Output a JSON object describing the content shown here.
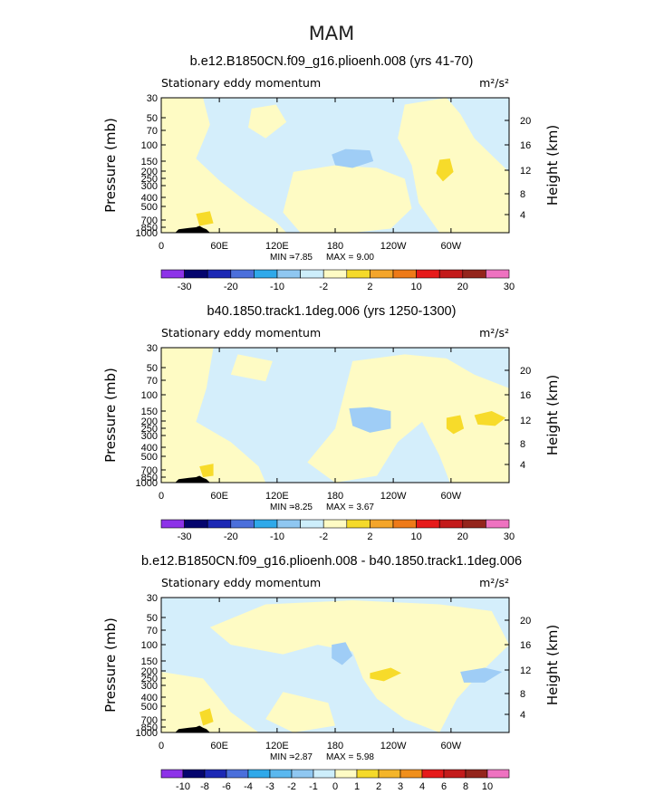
{
  "figure_title": "MAM",
  "colors": {
    "light_blue": "#d4eefb",
    "light_yellow": "#fefbc4",
    "mid_blue": "#9fcdf6",
    "yellow": "#f7db2a",
    "frame": "#000000"
  },
  "chart_data": [
    {
      "type": "heatmap",
      "title": "b.e12.B1850CN.f09_g16.plioenh.008 (yrs 41-70)",
      "left_label": "Stationary eddy momentum",
      "units": "m²/s²",
      "ylabel": "Pressure (mb)",
      "ylabel_right": "Height (km)",
      "x_ticks": [
        "0",
        "60E",
        "120E",
        "180",
        "120W",
        "60W"
      ],
      "y_ticks": [
        "30",
        "50",
        "70",
        "100",
        "150",
        "200",
        "250",
        "300",
        "400",
        "500",
        "700",
        "850",
        "1000"
      ],
      "height_ticks": [
        "20",
        "16",
        "12",
        "8",
        "4"
      ],
      "stats": {
        "min_label": "MIN =",
        "min": "-7.85",
        "max_label": "MAX =",
        "max": "9.00"
      },
      "colorbar_labels": [
        "-30",
        "-20",
        "-10",
        "-2",
        "2",
        "10",
        "20",
        "30"
      ]
    },
    {
      "type": "heatmap",
      "title": "b40.1850.track1.1deg.006 (yrs 1250-1300)",
      "left_label": "Stationary eddy momentum",
      "units": "m²/s²",
      "ylabel": "Pressure (mb)",
      "ylabel_right": "Height (km)",
      "x_ticks": [
        "0",
        "60E",
        "120E",
        "180",
        "120W",
        "60W"
      ],
      "y_ticks": [
        "30",
        "50",
        "70",
        "100",
        "150",
        "200",
        "250",
        "300",
        "400",
        "500",
        "700",
        "850",
        "1000"
      ],
      "height_ticks": [
        "20",
        "16",
        "12",
        "8",
        "4"
      ],
      "stats": {
        "min_label": "MIN =",
        "min": "-8.25",
        "max_label": "MAX =",
        "max": "3.67"
      },
      "colorbar_labels": [
        "-30",
        "-20",
        "-10",
        "-2",
        "2",
        "10",
        "20",
        "30"
      ]
    },
    {
      "type": "heatmap",
      "title": "b.e12.B1850CN.f09_g16.plioenh.008 - b40.1850.track1.1deg.006",
      "left_label": "Stationary eddy momentum",
      "units": "m²/s²",
      "ylabel": "Pressure (mb)",
      "ylabel_right": "Height (km)",
      "x_ticks": [
        "0",
        "60E",
        "120E",
        "180",
        "120W",
        "60W"
      ],
      "y_ticks": [
        "30",
        "50",
        "70",
        "100",
        "150",
        "200",
        "250",
        "300",
        "400",
        "500",
        "700",
        "850",
        "1000"
      ],
      "height_ticks": [
        "20",
        "16",
        "12",
        "8",
        "4"
      ],
      "stats": {
        "min_label": "MIN =",
        "min": "-2.87",
        "max_label": "MAX =",
        "max": "5.98"
      },
      "colorbar_labels": [
        "-10",
        "-8",
        "-6",
        "-4",
        "-3",
        "-2",
        "-1",
        "0",
        "1",
        "2",
        "3",
        "4",
        "6",
        "8",
        "10"
      ]
    }
  ]
}
